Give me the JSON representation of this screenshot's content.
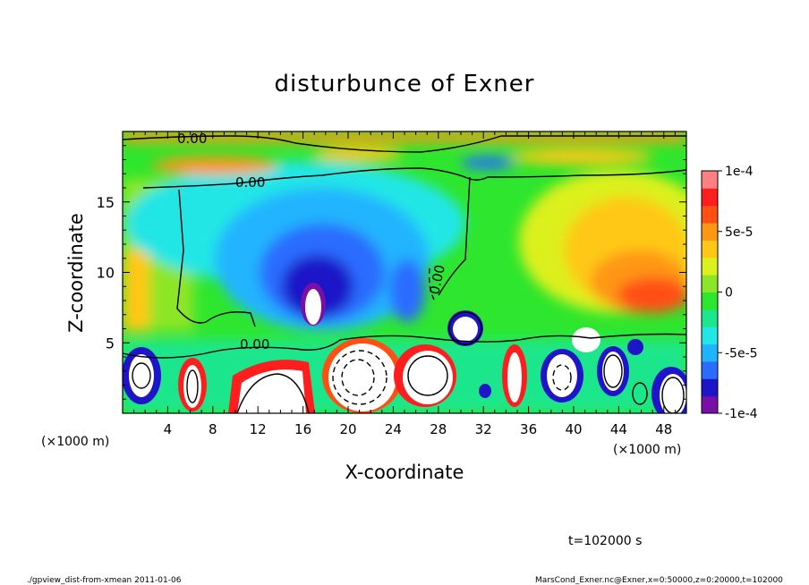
{
  "chart_data": {
    "type": "heatmap",
    "title": "disturbunce of Exner",
    "xlabel": "X-coordinate",
    "ylabel": "Z-coordinate",
    "x_unit": "(×1000 m)",
    "y_unit": "(×1000 m)",
    "xlim": [
      0,
      50
    ],
    "ylim": [
      0,
      20
    ],
    "x_ticks": [
      4,
      8,
      12,
      16,
      20,
      24,
      28,
      32,
      36,
      40,
      44,
      48
    ],
    "y_ticks": [
      5,
      10,
      15
    ],
    "colorbar": {
      "min": -0.0001,
      "max": 0.0001,
      "tick_labels": [
        "1e-4",
        "5e-5",
        "0",
        "-5e-5",
        "-1e-4"
      ],
      "tick_values": [
        0.0001,
        5e-05,
        0,
        -5e-05,
        -0.0001
      ],
      "colors": [
        "#7a0fa8",
        "#1e14c8",
        "#2a6cff",
        "#20b4ff",
        "#24e6e6",
        "#1ee68c",
        "#2ee62e",
        "#8ce628",
        "#dcf01e",
        "#ffc814",
        "#ff9614",
        "#ff5014",
        "#ff1e1e",
        "#ff8080"
      ]
    },
    "contour_labels": [
      "0.00",
      "0.00",
      "0.00",
      "0.00"
    ],
    "time_label": "t=102000 s"
  },
  "footer": {
    "left": "./gpview_dist-from-xmean  2011-01-06",
    "right": "MarsCond_Exner.nc@Exner,x=0:50000,z=0:20000,t=102000"
  }
}
